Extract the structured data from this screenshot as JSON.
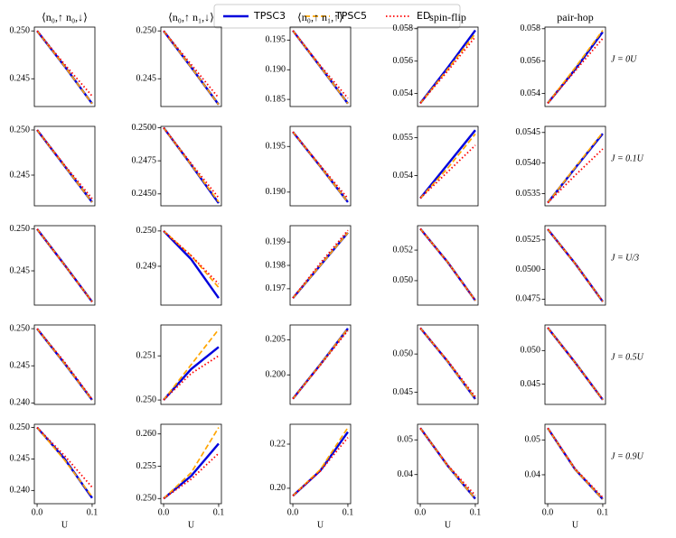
{
  "legend": [
    {
      "name": "TPSC3",
      "color": "#0000dd",
      "dash": "solid"
    },
    {
      "name": "TPSC5",
      "color": "#ffa500",
      "dash": "dashed"
    },
    {
      "name": "ED",
      "color": "#ff0000",
      "dash": "dotted"
    }
  ],
  "chart_data": [
    {
      "type": "line",
      "title": "⟨n₀,↑ n₀,↓⟩",
      "x": [
        0,
        0.05,
        0.1
      ],
      "xlim": [
        -0.005,
        0.105
      ],
      "ylim": [
        0.2421,
        0.2504
      ],
      "yticks": [
        0.245,
        {
          "value": 0.25,
          "label": "0.250"
        }
      ],
      "series": [
        {
          "values": [
            0.25,
            0.2463,
            0.2424
          ]
        },
        {
          "values": [
            0.25,
            0.2463,
            0.2424
          ]
        },
        {
          "values": [
            0.25,
            0.2465,
            0.2432
          ]
        }
      ]
    },
    {
      "type": "line",
      "title": "⟨n₀,↑ n₁,↓⟩",
      "x": [
        0,
        0.05,
        0.1
      ],
      "xlim": [
        -0.005,
        0.105
      ],
      "ylim": [
        0.2421,
        0.2504
      ],
      "yticks": [
        0.245,
        {
          "value": 0.25,
          "label": "0.250"
        }
      ],
      "series": [
        {
          "values": [
            0.25,
            0.2462,
            0.2423
          ]
        },
        {
          "values": [
            0.25,
            0.2462,
            0.2423
          ]
        },
        {
          "values": [
            0.25,
            0.2465,
            0.243
          ]
        }
      ]
    },
    {
      "type": "line",
      "title": "⟨n₀,↑ n₁,↑⟩",
      "x": [
        0,
        0.05,
        0.1
      ],
      "xlim": [
        -0.005,
        0.105
      ],
      "ylim": [
        0.1838,
        0.1972
      ],
      "yticks": [
        0.185,
        {
          "value": 0.19,
          "label": "0.190"
        },
        0.195
      ],
      "series": [
        {
          "values": [
            0.1966,
            0.1905,
            0.1843
          ]
        },
        {
          "values": [
            0.1966,
            0.1905,
            0.1843
          ]
        },
        {
          "values": [
            0.1966,
            0.1907,
            0.1852
          ]
        }
      ]
    },
    {
      "type": "line",
      "title": "spin-flip",
      "x": [
        0,
        0.05,
        0.1
      ],
      "xlim": [
        -0.005,
        0.105
      ],
      "ylim": [
        0.0532,
        0.0581
      ],
      "yticks": [
        0.054,
        0.056,
        0.058
      ],
      "series": [
        {
          "values": [
            0.0534,
            0.0556,
            0.0579
          ]
        },
        {
          "values": [
            0.0534,
            0.0555,
            0.0577
          ]
        },
        {
          "values": [
            0.0534,
            0.0554,
            0.0575
          ]
        }
      ]
    },
    {
      "type": "line",
      "title": "pair-hop",
      "annotation": "J = 0U",
      "x": [
        0,
        0.05,
        0.1
      ],
      "xlim": [
        -0.005,
        0.105
      ],
      "ylim": [
        0.0532,
        0.0581
      ],
      "yticks": [
        0.054,
        0.056,
        0.058
      ],
      "series": [
        {
          "values": [
            0.0534,
            0.0555,
            0.0578
          ]
        },
        {
          "values": [
            0.0534,
            0.0556,
            0.0579
          ]
        },
        {
          "values": [
            0.0534,
            0.0554,
            0.0574
          ]
        }
      ]
    },
    {
      "type": "line",
      "x": [
        0,
        0.05,
        0.1
      ],
      "xlim": [
        -0.005,
        0.105
      ],
      "ylim": [
        0.2416,
        0.2504
      ],
      "yticks": [
        0.245,
        {
          "value": 0.25,
          "label": "0.250"
        }
      ],
      "series": [
        {
          "values": [
            0.25,
            0.246,
            0.242
          ]
        },
        {
          "values": [
            0.25,
            0.246,
            0.242
          ]
        },
        {
          "values": [
            0.25,
            0.2461,
            0.2424
          ]
        }
      ]
    },
    {
      "type": "line",
      "x": [
        0,
        0.05,
        0.1
      ],
      "xlim": [
        -0.005,
        0.105
      ],
      "ylim": [
        0.2441,
        0.2501
      ],
      "yticks": [
        {
          "value": 0.245,
          "label": "0.2450"
        },
        0.2475,
        {
          "value": 0.25,
          "label": "0.2500"
        }
      ],
      "series": [
        {
          "values": [
            0.25,
            0.2472,
            0.2443
          ]
        },
        {
          "values": [
            0.25,
            0.2472,
            0.2444
          ]
        },
        {
          "values": [
            0.25,
            0.2473,
            0.2447
          ]
        }
      ]
    },
    {
      "type": "line",
      "x": [
        0,
        0.05,
        0.1
      ],
      "xlim": [
        -0.005,
        0.105
      ],
      "ylim": [
        0.1885,
        0.1972
      ],
      "yticks": [
        {
          "value": 0.19,
          "label": "0.190"
        },
        0.195
      ],
      "series": [
        {
          "values": [
            0.1966,
            0.1928,
            0.1889
          ]
        },
        {
          "values": [
            0.1966,
            0.1928,
            0.1889
          ]
        },
        {
          "values": [
            0.1966,
            0.1929,
            0.1893
          ]
        }
      ]
    },
    {
      "type": "line",
      "x": [
        0,
        0.05,
        0.1
      ],
      "xlim": [
        -0.005,
        0.105
      ],
      "ylim": [
        0.0532,
        0.0553
      ],
      "yticks": [
        0.054,
        0.055
      ],
      "series": [
        {
          "values": [
            0.0534,
            0.0543,
            0.0552
          ]
        },
        {
          "values": [
            0.0534,
            0.0542,
            0.0551
          ]
        },
        {
          "values": [
            0.0534,
            0.0541,
            0.0548
          ]
        }
      ]
    },
    {
      "type": "line",
      "annotation": "J = 0.1U",
      "x": [
        0,
        0.05,
        0.1
      ],
      "xlim": [
        -0.005,
        0.105
      ],
      "ylim": [
        0.0533,
        0.0546
      ],
      "yticks": [
        0.0535,
        {
          "value": 0.054,
          "label": "0.0540"
        },
        0.0545
      ],
      "series": [
        {
          "values": [
            0.05335,
            0.05392,
            0.05448
          ]
        },
        {
          "values": [
            0.05335,
            0.05393,
            0.0545
          ]
        },
        {
          "values": [
            0.05335,
            0.0538,
            0.05423
          ]
        }
      ]
    },
    {
      "type": "line",
      "x": [
        0,
        0.05,
        0.1
      ],
      "xlim": [
        -0.005,
        0.105
      ],
      "ylim": [
        0.2409,
        0.2504
      ],
      "yticks": [
        0.245,
        {
          "value": 0.25,
          "label": "0.250"
        }
      ],
      "series": [
        {
          "values": [
            0.25,
            0.2457,
            0.2413
          ]
        },
        {
          "values": [
            0.25,
            0.2457,
            0.2413
          ]
        },
        {
          "values": [
            0.25,
            0.2457,
            0.2413
          ]
        }
      ]
    },
    {
      "type": "line",
      "x": [
        0,
        0.05,
        0.1
      ],
      "xlim": [
        -0.005,
        0.105
      ],
      "ylim": [
        0.2479,
        0.25015
      ],
      "yticks": [
        0.249,
        {
          "value": 0.25,
          "label": "0.250"
        }
      ],
      "series": [
        {
          "values": [
            0.25,
            0.2492,
            0.2481
          ]
        },
        {
          "values": [
            0.25,
            0.2493,
            0.2484
          ]
        },
        {
          "values": [
            0.25,
            0.2493,
            0.2485
          ]
        }
      ]
    },
    {
      "type": "line",
      "x": [
        0,
        0.05,
        0.1
      ],
      "xlim": [
        -0.005,
        0.105
      ],
      "ylim": [
        0.1963,
        0.1997
      ],
      "yticks": [
        0.197,
        0.198,
        0.199
      ],
      "series": [
        {
          "values": [
            0.1966,
            0.198,
            0.1994
          ]
        },
        {
          "values": [
            0.1966,
            0.198,
            0.1994
          ]
        },
        {
          "values": [
            0.1966,
            0.1981,
            0.1995
          ]
        }
      ]
    },
    {
      "type": "line",
      "x": [
        0,
        0.05,
        0.1
      ],
      "xlim": [
        -0.005,
        0.105
      ],
      "ylim": [
        0.0484,
        0.0536
      ],
      "yticks": [
        {
          "value": 0.05,
          "label": "0.050"
        },
        0.052
      ],
      "series": [
        {
          "values": [
            0.0534,
            0.0512,
            0.0487
          ]
        },
        {
          "values": [
            0.0534,
            0.0512,
            0.0487
          ]
        },
        {
          "values": [
            0.0534,
            0.0512,
            0.0487
          ]
        }
      ]
    },
    {
      "type": "line",
      "annotation": "J = U/3",
      "x": [
        0,
        0.05,
        0.1
      ],
      "xlim": [
        -0.005,
        0.105
      ],
      "ylim": [
        0.047,
        0.0537
      ],
      "yticks": [
        0.0475,
        {
          "value": 0.05,
          "label": "0.0500"
        },
        0.0525
      ],
      "series": [
        {
          "values": [
            0.0534,
            0.0505,
            0.0473
          ]
        },
        {
          "values": [
            0.0534,
            0.0505,
            0.0473
          ]
        },
        {
          "values": [
            0.0534,
            0.0505,
            0.0473
          ]
        }
      ]
    },
    {
      "type": "line",
      "x": [
        0,
        0.05,
        0.1
      ],
      "xlim": [
        -0.005,
        0.105
      ],
      "ylim": [
        0.2398,
        0.2505
      ],
      "yticks": [
        {
          "value": 0.24,
          "label": "0.240"
        },
        0.245,
        {
          "value": 0.25,
          "label": "0.250"
        }
      ],
      "series": [
        {
          "values": [
            0.25,
            0.2453,
            0.2404
          ]
        },
        {
          "values": [
            0.25,
            0.2453,
            0.2404
          ]
        },
        {
          "values": [
            0.25,
            0.2455,
            0.2405
          ]
        }
      ]
    },
    {
      "type": "line",
      "x": [
        0,
        0.05,
        0.1
      ],
      "xlim": [
        -0.005,
        0.105
      ],
      "ylim": [
        0.2499,
        0.2517
      ],
      "yticks": [
        {
          "value": 0.25,
          "label": "0.250"
        },
        0.251
      ],
      "series": [
        {
          "values": [
            0.25,
            0.2507,
            0.2512
          ]
        },
        {
          "values": [
            0.25,
            0.2508,
            0.2516
          ]
        },
        {
          "values": [
            0.25,
            0.2506,
            0.251
          ]
        }
      ]
    },
    {
      "type": "line",
      "x": [
        0,
        0.05,
        0.1
      ],
      "xlim": [
        -0.005,
        0.105
      ],
      "ylim": [
        0.1958,
        0.2071
      ],
      "yticks": [
        {
          "value": 0.2,
          "label": "0.200"
        },
        0.205
      ],
      "series": [
        {
          "values": [
            0.1966,
            0.2015,
            0.2066
          ]
        },
        {
          "values": [
            0.1966,
            0.2015,
            0.2066
          ]
        },
        {
          "values": [
            0.1966,
            0.2014,
            0.2063
          ]
        }
      ]
    },
    {
      "type": "line",
      "x": [
        0,
        0.05,
        0.1
      ],
      "xlim": [
        -0.005,
        0.105
      ],
      "ylim": [
        0.0434,
        0.0538
      ],
      "yticks": [
        0.045,
        {
          "value": 0.05,
          "label": "0.050"
        }
      ],
      "series": [
        {
          "values": [
            0.0534,
            0.049,
            0.0441
          ]
        },
        {
          "values": [
            0.0534,
            0.049,
            0.0441
          ]
        },
        {
          "values": [
            0.0534,
            0.0491,
            0.0444
          ]
        }
      ]
    },
    {
      "type": "line",
      "annotation": "J = 0.5U",
      "x": [
        0,
        0.05,
        0.1
      ],
      "xlim": [
        -0.005,
        0.105
      ],
      "ylim": [
        0.042,
        0.0538
      ],
      "yticks": [
        0.045,
        {
          "value": 0.05,
          "label": "0.050"
        }
      ],
      "series": [
        {
          "values": [
            0.0534,
            0.0482,
            0.0427
          ]
        },
        {
          "values": [
            0.0534,
            0.0482,
            0.0427
          ]
        },
        {
          "values": [
            0.0534,
            0.0482,
            0.0427
          ]
        }
      ]
    },
    {
      "type": "line",
      "xlabel": "U",
      "xticks": [
        {
          "value": 0,
          "label": "0.0"
        },
        0.1
      ],
      "x": [
        0,
        0.05,
        0.1
      ],
      "xlim": [
        -0.005,
        0.105
      ],
      "ylim": [
        0.2379,
        0.2505
      ],
      "yticks": [
        {
          "value": 0.24,
          "label": "0.240"
        },
        0.245,
        {
          "value": 0.25,
          "label": "0.250"
        }
      ],
      "series": [
        {
          "values": [
            0.25,
            0.245,
            0.2388
          ]
        },
        {
          "values": [
            0.25,
            0.2448,
            0.239
          ]
        },
        {
          "values": [
            0.25,
            0.2455,
            0.2405
          ]
        }
      ]
    },
    {
      "type": "line",
      "xlabel": "U",
      "xticks": [
        {
          "value": 0,
          "label": "0.0"
        },
        0.1
      ],
      "x": [
        0,
        0.05,
        0.1
      ],
      "xlim": [
        -0.005,
        0.105
      ],
      "ylim": [
        0.2492,
        0.2615
      ],
      "yticks": [
        {
          "value": 0.25,
          "label": "0.250"
        },
        0.255,
        {
          "value": 0.26,
          "label": "0.260"
        }
      ],
      "series": [
        {
          "values": [
            0.25,
            0.2535,
            0.2585
          ]
        },
        {
          "values": [
            0.25,
            0.254,
            0.261
          ]
        },
        {
          "values": [
            0.25,
            0.253,
            0.257
          ]
        }
      ]
    },
    {
      "type": "line",
      "xlabel": "U",
      "xticks": [
        {
          "value": 0,
          "label": "0.0"
        },
        0.1
      ],
      "x": [
        0,
        0.05,
        0.1
      ],
      "xlim": [
        -0.005,
        0.105
      ],
      "ylim": [
        0.193,
        0.229
      ],
      "yticks": [
        {
          "value": 0.2,
          "label": "0.20"
        },
        0.22
      ],
      "series": [
        {
          "values": [
            0.1966,
            0.208,
            0.2255
          ]
        },
        {
          "values": [
            0.1966,
            0.2085,
            0.2275
          ]
        },
        {
          "values": [
            0.1966,
            0.2078,
            0.223
          ]
        }
      ]
    },
    {
      "type": "line",
      "xlabel": "U",
      "xticks": [
        {
          "value": 0,
          "label": "0.0"
        },
        0.1
      ],
      "x": [
        0,
        0.05,
        0.1
      ],
      "xlim": [
        -0.005,
        0.105
      ],
      "ylim": [
        0.0316,
        0.0545
      ],
      "yticks": [
        0.04,
        0.05
      ],
      "series": [
        {
          "values": [
            0.0534,
            0.0425,
            0.033
          ]
        },
        {
          "values": [
            0.0534,
            0.0425,
            0.033
          ]
        },
        {
          "values": [
            0.0534,
            0.0427,
            0.034
          ]
        }
      ]
    },
    {
      "type": "line",
      "xlabel": "U",
      "annotation": "J = 0.9U",
      "xticks": [
        {
          "value": 0,
          "label": "0.0"
        },
        0.1
      ],
      "x": [
        0,
        0.05,
        0.1
      ],
      "xlim": [
        -0.005,
        0.105
      ],
      "ylim": [
        0.0317,
        0.0545
      ],
      "yticks": [
        0.04,
        0.05
      ],
      "series": [
        {
          "values": [
            0.0534,
            0.0415,
            0.033
          ]
        },
        {
          "values": [
            0.0534,
            0.0415,
            0.033
          ]
        },
        {
          "values": [
            0.0534,
            0.0417,
            0.0335
          ]
        }
      ]
    }
  ]
}
